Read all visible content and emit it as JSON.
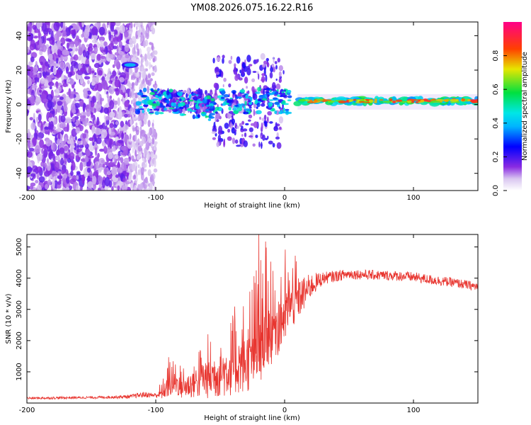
{
  "figure_title": "YM08.2026.075.16.22.R16",
  "colors": {
    "signal": "#e8352f",
    "ridge": "#d9262e",
    "frame": "#000000"
  },
  "chart_data": [
    {
      "type": "heatmap",
      "title": "YM08.2026.075.16.22.R16",
      "xlabel": "Height of straight line (km)",
      "ylabel": "Frequency (Hz)",
      "xlim": [
        -200,
        150
      ],
      "ylim": [
        -50,
        48
      ],
      "xticks": [
        "-200",
        "-100",
        "0",
        "100"
      ],
      "xtick_values": [
        -200,
        -100,
        0,
        100
      ],
      "yticks": [
        "-40",
        "-20",
        "0",
        "20",
        "40"
      ],
      "ytick_values": [
        -40,
        -20,
        0,
        20,
        40
      ],
      "colorbar": {
        "label": "Normalized spectral amplitude",
        "range": [
          0,
          1
        ],
        "ticks": [
          "0.0",
          "0.2",
          "0.4",
          "0.6",
          "0.8"
        ],
        "tick_values": [
          0.0,
          0.2,
          0.4,
          0.6,
          0.8
        ],
        "colormap": "rainbow (white-violet-blue-cyan-green-yellow-red-magenta)"
      },
      "features": [
        {
          "name": "isolated peak",
          "x": -120,
          "y": 23,
          "amplitude": 0.35
        },
        {
          "name": "coherent ridge",
          "x_range": [
            10,
            150
          ],
          "y": 2,
          "amplitude": 0.85
        },
        {
          "name": "scattered noise",
          "x_range": [
            -200,
            -120
          ],
          "y_range": [
            -50,
            48
          ],
          "amplitude": 0.1
        }
      ]
    },
    {
      "type": "line",
      "title": "",
      "xlabel": "Height of straight line (km)",
      "ylabel": "SNR (10 * v/v)",
      "xlim": [
        -200,
        150
      ],
      "ylim": [
        0,
        5400
      ],
      "xticks": [
        "-200",
        "-100",
        "0",
        "100"
      ],
      "xtick_values": [
        -200,
        -100,
        0,
        100
      ],
      "yticks": [
        "1000",
        "2000",
        "3000",
        "4000",
        "5000"
      ],
      "ytick_values": [
        1000,
        2000,
        3000,
        4000,
        5000
      ],
      "series": [
        {
          "name": "SNR",
          "x": [
            -200,
            -180,
            -160,
            -140,
            -120,
            -110,
            -100,
            -95,
            -90,
            -85,
            -80,
            -75,
            -70,
            -65,
            -60,
            -55,
            -50,
            -45,
            -40,
            -35,
            -30,
            -25,
            -20,
            -18,
            -15,
            -10,
            -5,
            0,
            5,
            10,
            15,
            20,
            25,
            30,
            40,
            50,
            60,
            70,
            80,
            90,
            100,
            110,
            120,
            130,
            140,
            150
          ],
          "values": [
            150,
            160,
            170,
            180,
            200,
            260,
            240,
            300,
            550,
            620,
            480,
            520,
            600,
            700,
            760,
            820,
            900,
            950,
            1050,
            1150,
            1200,
            1400,
            1700,
            1900,
            2200,
            2300,
            2500,
            2700,
            3050,
            3250,
            3450,
            3700,
            3850,
            3980,
            4050,
            4120,
            4100,
            4080,
            4070,
            4050,
            4020,
            3950,
            3900,
            3850,
            3780,
            3700
          ],
          "noise_amplitude": [
            40,
            40,
            40,
            40,
            60,
            90,
            80,
            200,
            420,
            400,
            380,
            420,
            500,
            650,
            700,
            760,
            820,
            850,
            900,
            950,
            1000,
            1100,
            1300,
            1400,
            1300,
            1200,
            1100,
            1000,
            850,
            700,
            550,
            400,
            300,
            200,
            180,
            160,
            160,
            160,
            160,
            160,
            160,
            160,
            160,
            150,
            150,
            150
          ],
          "spikes": [
            {
              "x": -20,
              "value": 5400
            },
            {
              "x": -22,
              "value": 4250
            },
            {
              "x": -17,
              "value": 4150
            }
          ]
        }
      ]
    }
  ]
}
